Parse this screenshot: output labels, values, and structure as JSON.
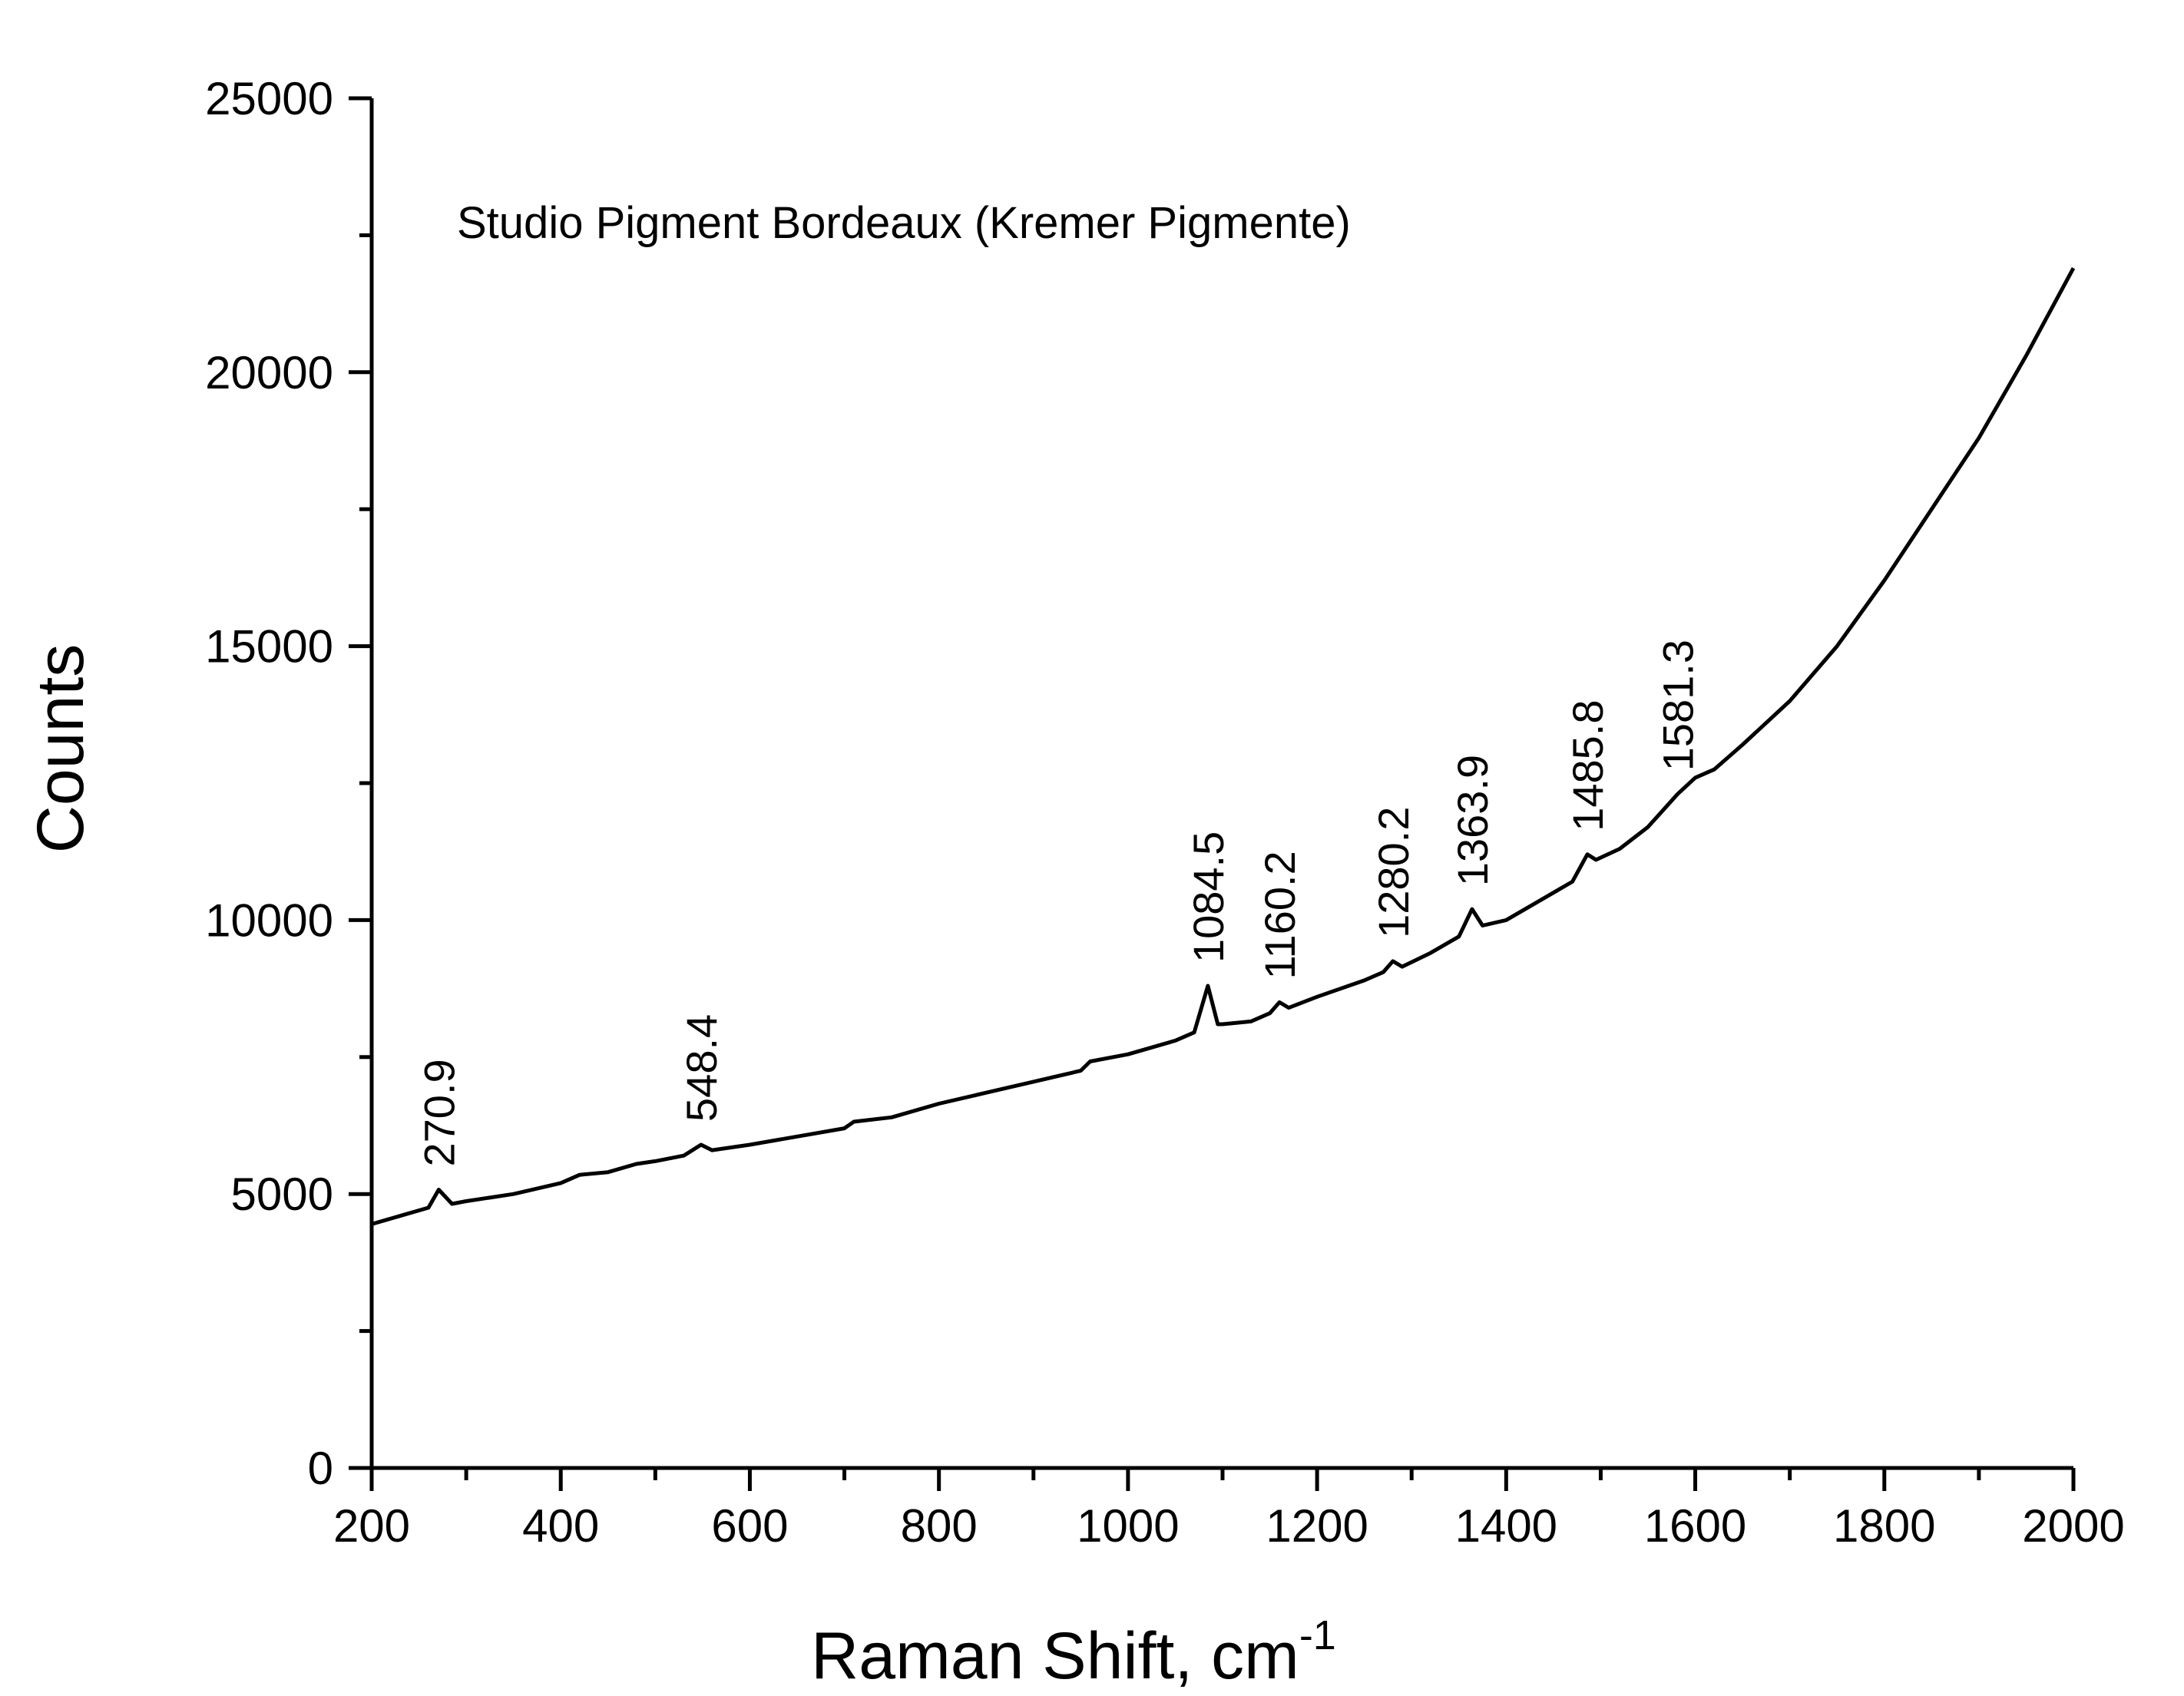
{
  "chart_data": {
    "type": "line",
    "title": "",
    "annotation": "Studio Pigment Bordeaux (Kremer Pigmente)",
    "xlabel": "Raman Shift, cm",
    "xlabel_superscript": "-1",
    "ylabel": "Counts",
    "xlim": [
      200,
      2000
    ],
    "ylim": [
      0,
      25000
    ],
    "xticks": [
      200,
      400,
      600,
      800,
      1000,
      1200,
      1400,
      1600,
      1800,
      2000
    ],
    "xtick_labels": [
      "200",
      "400",
      "600",
      "800",
      "1000",
      "1200",
      "1400",
      "1600",
      "1800",
      "2000"
    ],
    "yticks": [
      0,
      5000,
      10000,
      15000,
      20000,
      25000
    ],
    "ytick_labels": [
      "0",
      "5000",
      "10000",
      "15000",
      "20000",
      "25000"
    ],
    "grid": false,
    "legend": "none",
    "line_color": "#000000",
    "series": [
      {
        "x": [
          200,
          230,
          260,
          270.9,
          285,
          300,
          350,
          400,
          420,
          450,
          480,
          500,
          530,
          548.4,
          560,
          600,
          650,
          700,
          710,
          750,
          800,
          850,
          900,
          950,
          960,
          1000,
          1050,
          1070,
          1084.5,
          1095,
          1100,
          1130,
          1150,
          1160.2,
          1170,
          1200,
          1250,
          1270,
          1280.2,
          1290,
          1320,
          1350,
          1363.9,
          1375,
          1400,
          1450,
          1470,
          1485.8,
          1495,
          1520,
          1550,
          1581.3,
          1600,
          1620,
          1650,
          1700,
          1750,
          1800,
          1850,
          1900,
          1950,
          2000
        ],
        "y": [
          4450,
          4600,
          4750,
          5080,
          4820,
          4870,
          5000,
          5200,
          5350,
          5400,
          5550,
          5600,
          5700,
          5900,
          5800,
          5900,
          6050,
          6200,
          6320,
          6400,
          6650,
          6850,
          7050,
          7250,
          7420,
          7550,
          7800,
          7950,
          8800,
          8100,
          8100,
          8150,
          8300,
          8500,
          8400,
          8600,
          8900,
          9050,
          9250,
          9150,
          9400,
          9700,
          10200,
          9900,
          10000,
          10500,
          10700,
          11200,
          11100,
          11300,
          11700,
          12300,
          12600,
          12750,
          13200,
          14000,
          15000,
          16200,
          17500,
          18800,
          20300,
          21900
        ]
      }
    ],
    "peak_labels": [
      {
        "x": 270.9,
        "y": 5080,
        "text": "270.9"
      },
      {
        "x": 548.4,
        "y": 5900,
        "text": "548.4"
      },
      {
        "x": 1084.5,
        "y": 8800,
        "text": "1084.5"
      },
      {
        "x": 1160.2,
        "y": 8500,
        "text": "1160.2"
      },
      {
        "x": 1280.2,
        "y": 9250,
        "text": "1280.2"
      },
      {
        "x": 1363.9,
        "y": 10200,
        "text": "1363.9"
      },
      {
        "x": 1485.8,
        "y": 11200,
        "text": "1485.8"
      },
      {
        "x": 1581.3,
        "y": 12300,
        "text": "1581.3"
      }
    ]
  }
}
